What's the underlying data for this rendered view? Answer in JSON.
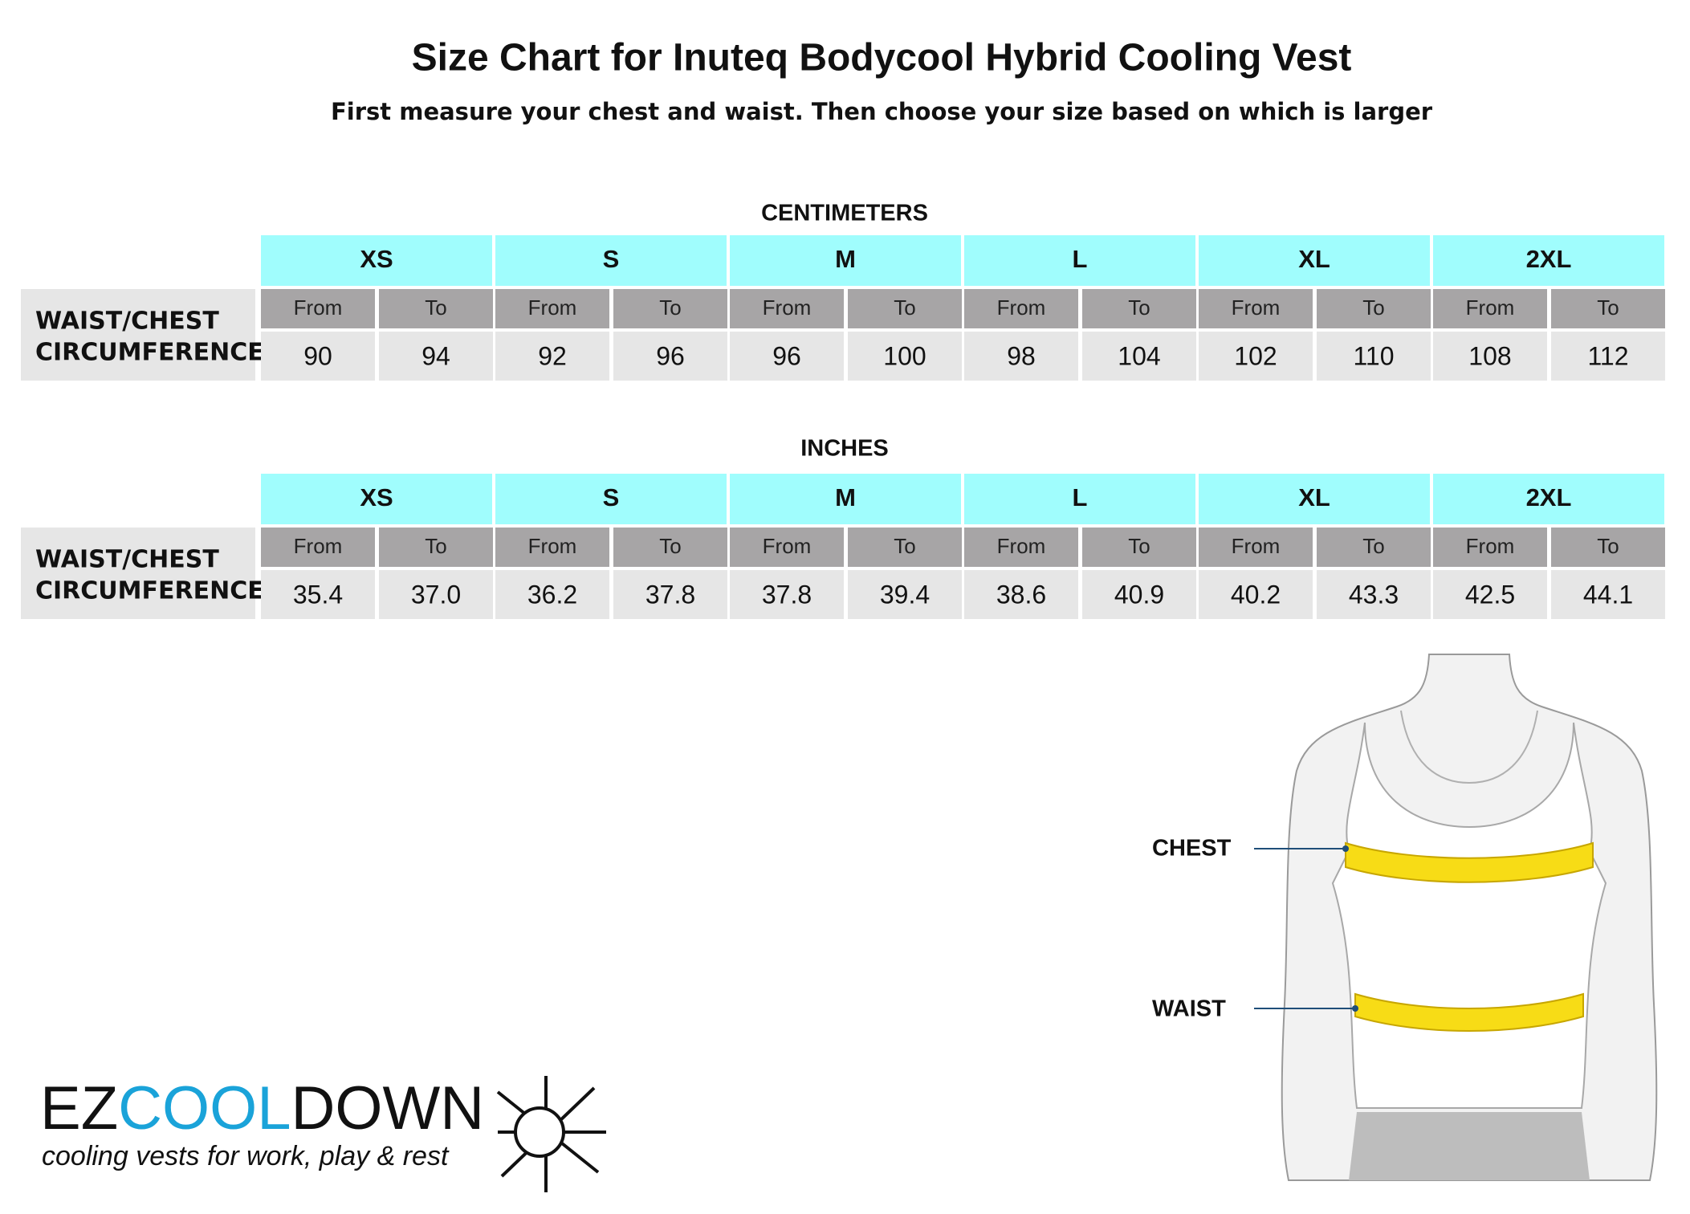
{
  "header": {
    "title": "Size Chart for Inuteq Bodycool Hybrid Cooling Vest",
    "subtitle": "First measure your chest and waist. Then choose your size based on which is larger"
  },
  "tables": [
    {
      "title": "CENTIMETERS",
      "row_label": [
        "WAIST/CHEST",
        "CIRCUMFERENCE"
      ],
      "columns": [
        "From",
        "To"
      ],
      "sizes": [
        "XS",
        "S",
        "M",
        "L",
        "XL",
        "2XL"
      ],
      "values": [
        [
          90,
          94
        ],
        [
          92,
          96
        ],
        [
          96,
          100
        ],
        [
          98,
          104
        ],
        [
          102,
          110
        ],
        [
          108,
          112
        ]
      ]
    },
    {
      "title": "INCHES",
      "row_label": [
        "WAIST/CHEST",
        "CIRCUMFERENCE"
      ],
      "columns": [
        "From",
        "To"
      ],
      "sizes": [
        "XS",
        "S",
        "M",
        "L",
        "XL",
        "2XL"
      ],
      "values": [
        [
          "35.4",
          "37.0"
        ],
        [
          "36.2",
          "37.8"
        ],
        [
          "37.8",
          "39.4"
        ],
        [
          "38.6",
          "40.9"
        ],
        [
          "40.2",
          "43.3"
        ],
        [
          "42.5",
          "44.1"
        ]
      ]
    }
  ],
  "figure": {
    "chest_label": "CHEST",
    "waist_label": "WAIST"
  },
  "logo": {
    "brand": [
      "EZ",
      "COOL",
      "DOWN"
    ],
    "tagline": "cooling vests for work, play & rest"
  }
}
